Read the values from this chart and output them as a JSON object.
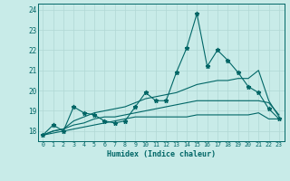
{
  "x_values": [
    0,
    1,
    2,
    3,
    4,
    5,
    6,
    7,
    8,
    9,
    10,
    11,
    12,
    13,
    14,
    15,
    16,
    17,
    18,
    19,
    20,
    21,
    22,
    23
  ],
  "line_jagged_y": [
    17.8,
    18.3,
    18.0,
    19.2,
    18.9,
    18.8,
    18.5,
    18.4,
    18.5,
    19.2,
    19.9,
    19.5,
    19.5,
    20.9,
    22.1,
    23.8,
    21.2,
    22.0,
    21.5,
    20.9,
    20.2,
    19.9,
    19.1,
    18.6
  ],
  "line_upper_y": [
    17.8,
    18.0,
    18.1,
    18.5,
    18.7,
    18.9,
    19.0,
    19.1,
    19.2,
    19.4,
    19.6,
    19.7,
    19.8,
    19.9,
    20.1,
    20.3,
    20.4,
    20.5,
    20.5,
    20.6,
    20.6,
    21.0,
    19.5,
    18.7
  ],
  "line_mid_y": [
    17.8,
    18.0,
    18.1,
    18.3,
    18.4,
    18.6,
    18.7,
    18.7,
    18.8,
    18.9,
    19.0,
    19.1,
    19.2,
    19.3,
    19.4,
    19.5,
    19.5,
    19.5,
    19.5,
    19.5,
    19.5,
    19.5,
    19.4,
    18.8
  ],
  "line_lower_y": [
    17.8,
    17.9,
    18.0,
    18.1,
    18.2,
    18.3,
    18.4,
    18.5,
    18.6,
    18.7,
    18.7,
    18.7,
    18.7,
    18.7,
    18.7,
    18.8,
    18.8,
    18.8,
    18.8,
    18.8,
    18.8,
    18.9,
    18.6,
    18.6
  ],
  "bg_color": "#c8ebe8",
  "line_color": "#006666",
  "grid_color": "#b0d8d4",
  "xlabel": "Humidex (Indice chaleur)",
  "ylim": [
    17.5,
    24.3
  ],
  "xlim": [
    -0.5,
    23.5
  ],
  "yticks": [
    18,
    19,
    20,
    21,
    22,
    23,
    24
  ]
}
